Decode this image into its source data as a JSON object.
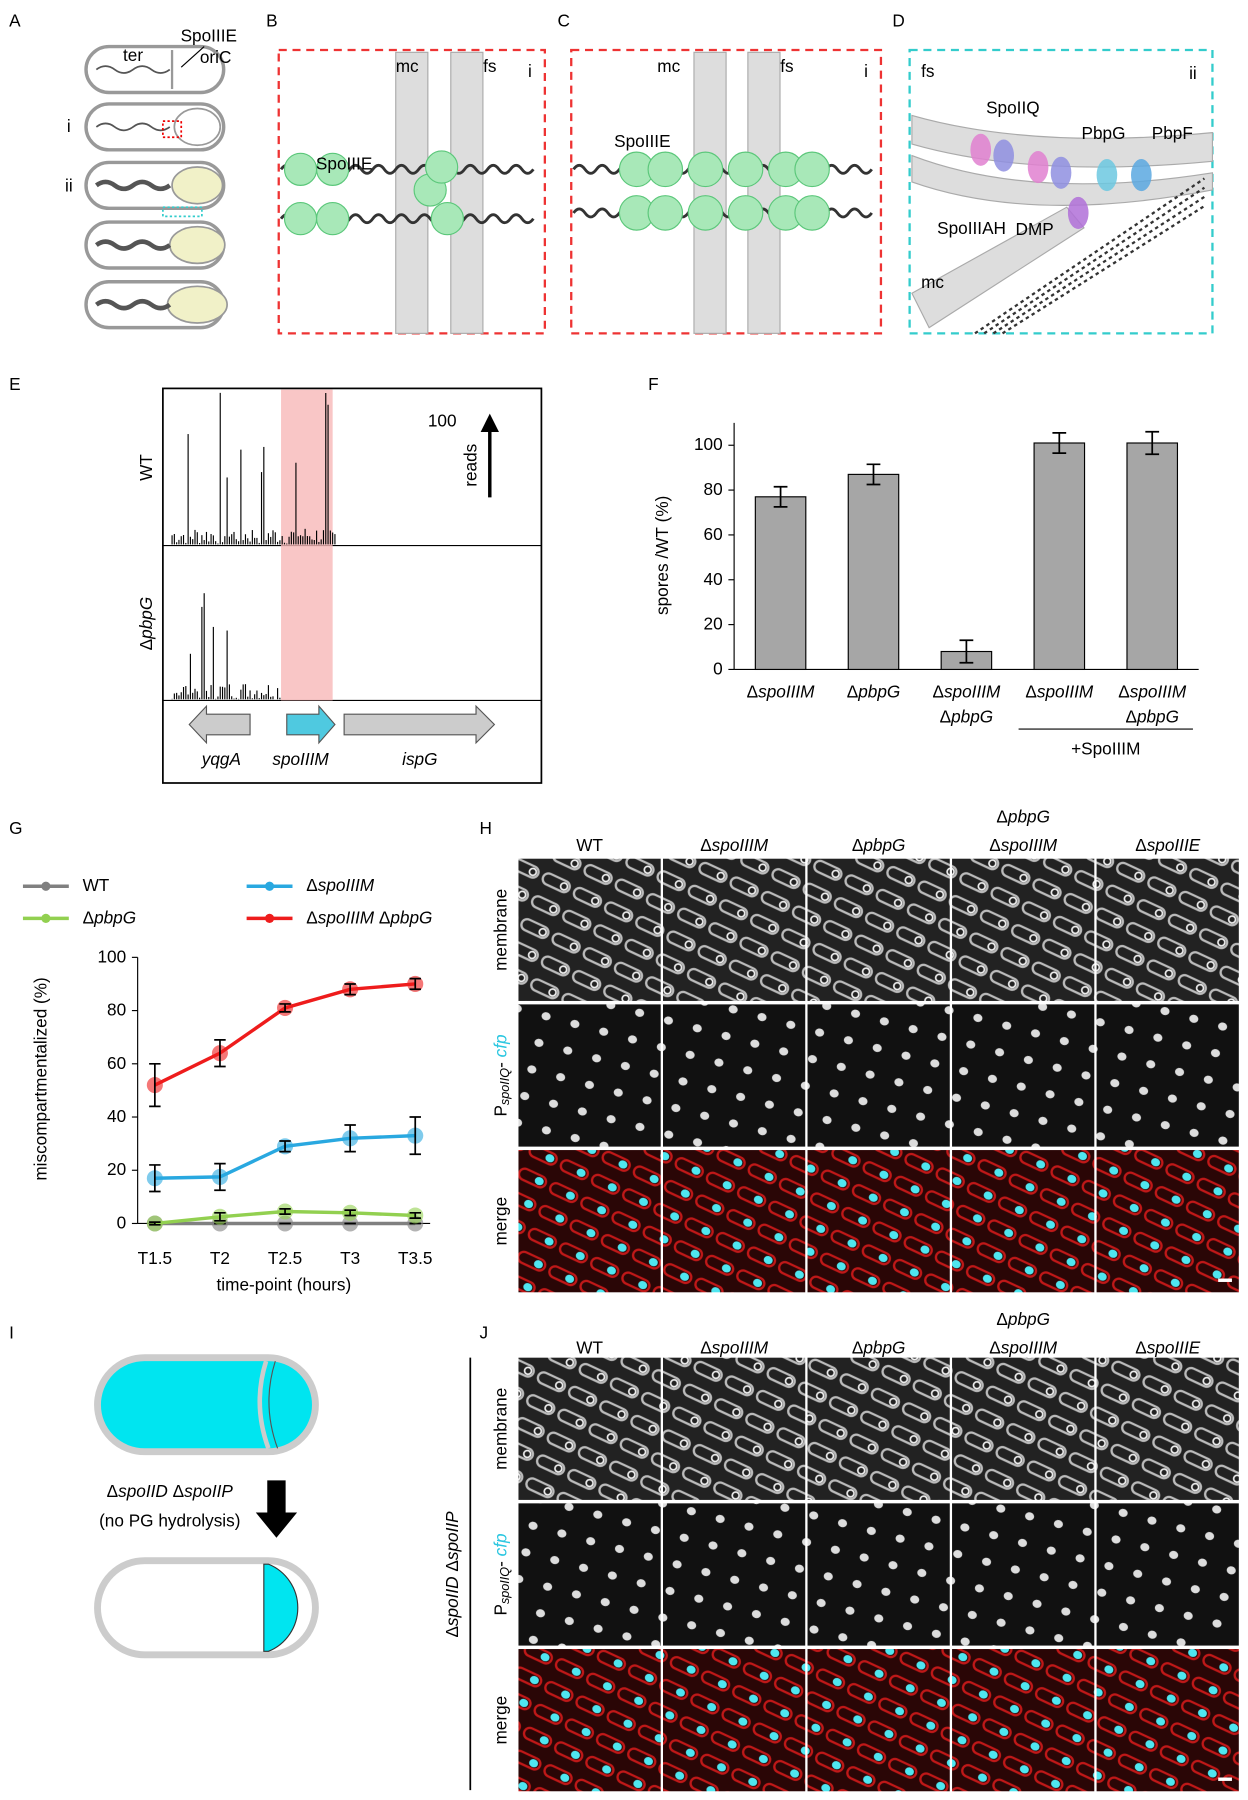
{
  "panels": {
    "labels": [
      "A",
      "B",
      "C",
      "D",
      "E",
      "F",
      "G",
      "H",
      "I",
      "J"
    ]
  },
  "panel_a": {
    "protein": "SpoIIIE",
    "ter": "ter",
    "oric": "oriC",
    "stages": [
      "i",
      "ii"
    ]
  },
  "panel_b": {
    "mc": "mc",
    "fs": "fs",
    "inset": "i",
    "protein": "SpoIIIE"
  },
  "panel_c": {
    "mc": "mc",
    "fs": "fs",
    "inset": "i",
    "protein": "SpoIIIE"
  },
  "panel_d": {
    "fs": "fs",
    "mc": "mc",
    "inset": "ii",
    "proteins": [
      "SpoIIQ",
      "PbpG",
      "PbpF",
      "SpoIIIAH",
      "DMP"
    ]
  },
  "panel_e": {
    "tracks": [
      "WT",
      "ΔpbpG"
    ],
    "scale_value": "100",
    "scale_label": "reads",
    "genes": [
      "yqgA",
      "spoIIIM",
      "ispG"
    ]
  },
  "chart_data": [
    {
      "type": "bar",
      "categories": [
        [
          "ΔspoIIIM"
        ],
        [
          "ΔpbpG"
        ],
        [
          "ΔspoIIIM",
          "ΔpbpG"
        ],
        [
          "ΔspoIIIM"
        ],
        [
          "ΔspoIIIM",
          "ΔpbpG"
        ]
      ],
      "values": [
        77,
        87,
        8,
        101,
        101
      ],
      "errors": [
        4.5,
        4.5,
        5,
        4.5,
        5
      ],
      "color": "#a6a6a6",
      "ylabel": "spores /WT (%)",
      "ylim": [
        0,
        110
      ],
      "yticks": [
        0,
        20,
        40,
        60,
        80,
        100
      ],
      "group_label": "+SpoIIIM"
    },
    {
      "type": "line",
      "x": [
        "T1.5",
        "T2",
        "T2.5",
        "T3",
        "T3.5"
      ],
      "series": [
        {
          "name": "WT",
          "color": "#808080",
          "values": [
            0,
            0,
            0,
            0,
            0
          ],
          "errors": [
            0,
            0,
            0,
            0,
            0
          ]
        },
        {
          "name": "ΔspoIIIM",
          "color": "#29a8e0",
          "values": [
            17,
            17.5,
            29,
            32,
            33
          ],
          "errors": [
            5,
            5,
            2,
            5,
            7
          ]
        },
        {
          "name": "ΔpbpG",
          "color": "#92d050",
          "values": [
            0,
            2.5,
            4.5,
            4,
            3
          ],
          "errors": [
            0.5,
            1.5,
            1,
            1,
            1
          ]
        },
        {
          "name": "ΔspoIIIM ΔpbpG",
          "color": "#ee1c1c",
          "values": [
            52,
            64,
            81,
            88,
            90
          ],
          "errors": [
            8,
            5,
            1.5,
            2,
            2
          ]
        }
      ],
      "ylim": [
        0,
        100
      ],
      "yticks": [
        0,
        20,
        40,
        60,
        80,
        100
      ],
      "xlabel": "time-point (hours)",
      "ylabel": "miscompartmentalized (%)"
    }
  ],
  "panel_h": {
    "columns": [
      [
        "WT"
      ],
      [
        "ΔspoIIIM"
      ],
      [
        "ΔpbpG"
      ],
      [
        "ΔpbpG",
        "ΔspoIIIM"
      ],
      [
        "ΔspoIIIE"
      ]
    ],
    "rows": {
      "membrane": "membrane",
      "reporter": {
        "promoter": "P",
        "subscript": "spoIIQ",
        "separator": "-",
        "gene": "cfp"
      },
      "merge": "merge"
    }
  },
  "panel_i": {
    "mutant": "ΔspoIID ΔspoIIP",
    "note": "(no PG hydrolysis)"
  },
  "panel_j": {
    "columns": [
      [
        "WT"
      ],
      [
        "ΔspoIIIM"
      ],
      [
        "ΔpbpG"
      ],
      [
        "ΔpbpG",
        "ΔspoIIIM"
      ],
      [
        "ΔspoIIIE"
      ]
    ],
    "rows": {
      "membrane": "membrane",
      "reporter": {
        "promoter": "P",
        "subscript": "spoIIQ",
        "separator": "-",
        "gene": "cfp"
      },
      "merge": "merge"
    },
    "strain": "ΔspoIID ΔspoIIP"
  }
}
